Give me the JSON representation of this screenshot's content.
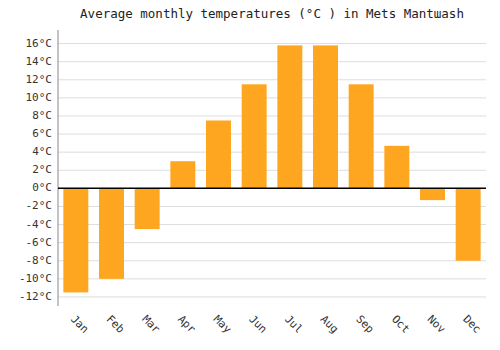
{
  "chart_data": {
    "type": "bar",
    "title": "Average monthly temperatures (°C ) in Mets Mantա​ash",
    "categories": [
      "Jan",
      "Feb",
      "Mar",
      "Apr",
      "May",
      "Jun",
      "Jul",
      "Aug",
      "Sep",
      "Oct",
      "Nov",
      "Dec"
    ],
    "values": [
      -11.5,
      -10.0,
      -4.5,
      3.0,
      7.5,
      11.5,
      15.8,
      15.8,
      11.5,
      4.7,
      -1.3,
      -8.0
    ],
    "color": "#FFA620",
    "ylim": [
      -13,
      17.5
    ],
    "yticks": [
      {
        "value": -12,
        "label": "-12°C"
      },
      {
        "value": -10,
        "label": "-10°C"
      },
      {
        "value": -8,
        "label": "-8°C"
      },
      {
        "value": -6,
        "label": "-6°C"
      },
      {
        "value": -4,
        "label": "-4°C"
      },
      {
        "value": -2,
        "label": "-2°C"
      },
      {
        "value": 0,
        "label": "0°C"
      },
      {
        "value": 2,
        "label": "2°C"
      },
      {
        "value": 4,
        "label": "4°C"
      },
      {
        "value": 6,
        "label": "6°C"
      },
      {
        "value": 8,
        "label": "8°C"
      },
      {
        "value": 10,
        "label": "10°C"
      },
      {
        "value": 12,
        "label": "12°C"
      },
      {
        "value": 14,
        "label": "14°C"
      },
      {
        "value": 16,
        "label": "16°C"
      }
    ],
    "grid": true
  }
}
